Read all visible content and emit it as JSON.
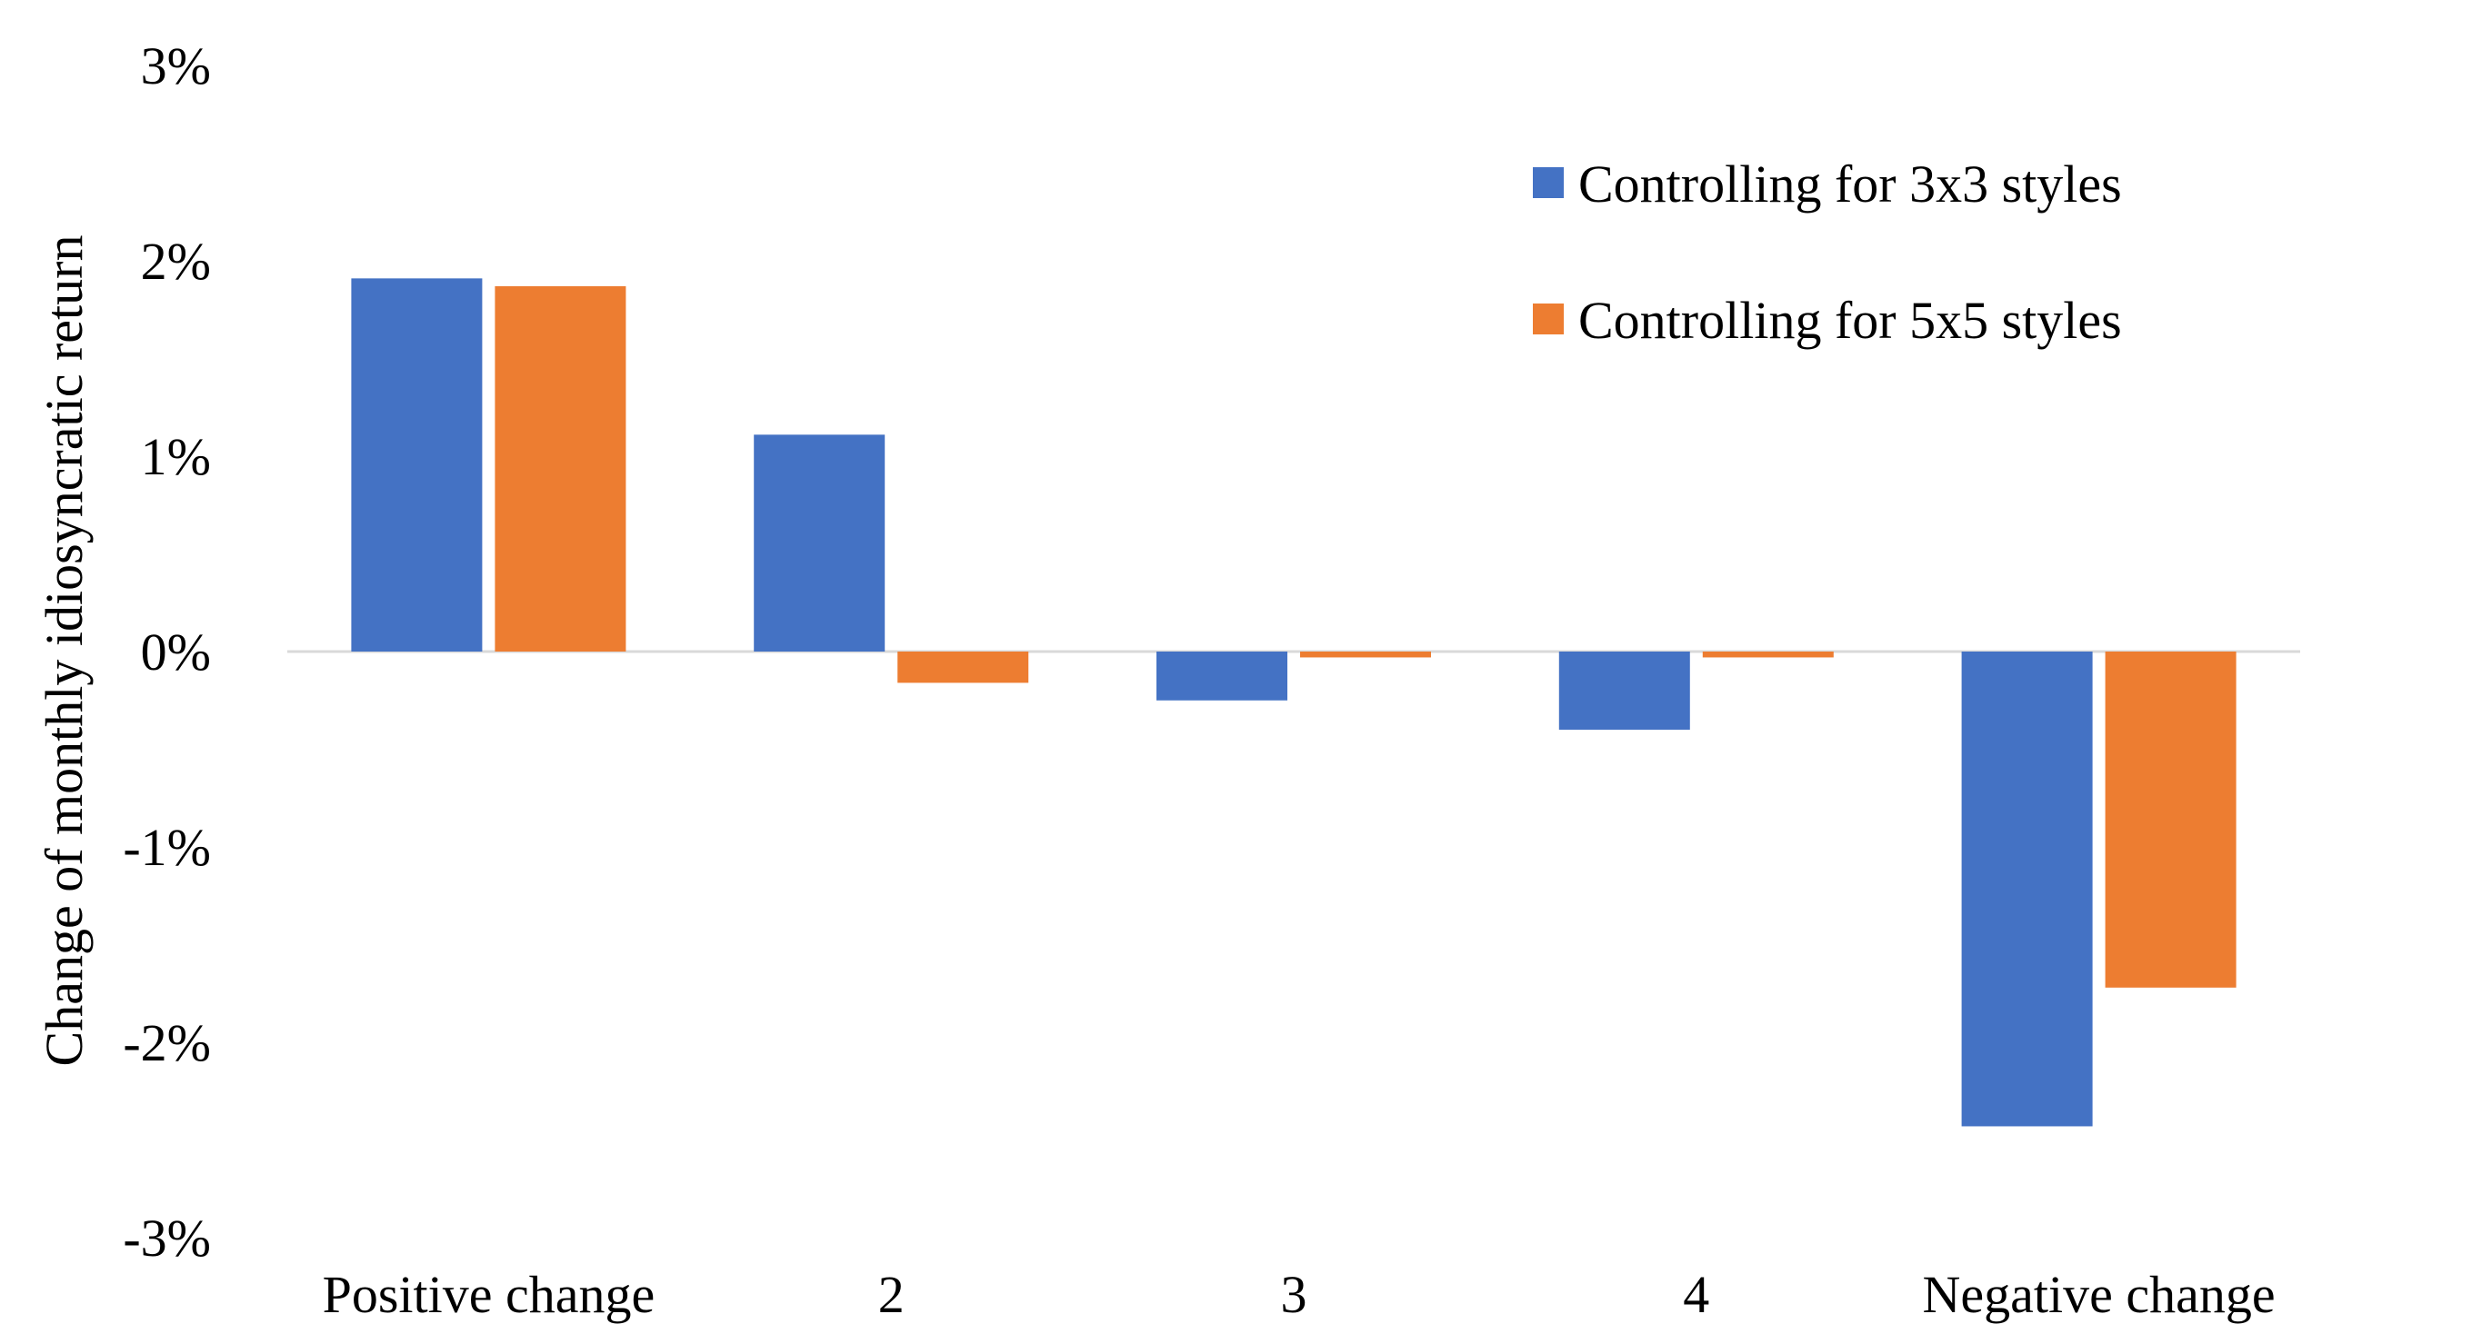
{
  "chart_data": {
    "type": "bar",
    "title": "",
    "xlabel": "",
    "ylabel": "Change of monthly idiosyncratic return",
    "categories": [
      "Positive change",
      "2",
      "3",
      "4",
      "Negative change"
    ],
    "series": [
      {
        "name": "Controlling for 3x3 styles",
        "color": "#4472C4",
        "values": [
          1.91,
          1.11,
          -0.25,
          -0.4,
          -2.43
        ]
      },
      {
        "name": "Controlling for 5x5 styles",
        "color": "#ED7D31",
        "values": [
          1.87,
          -0.16,
          -0.03,
          -0.03,
          -1.72
        ]
      }
    ],
    "ylim": [
      -3,
      3
    ],
    "yticks": [
      3,
      2,
      1,
      0,
      -1,
      -2,
      -3
    ],
    "ytick_labels": [
      "3%",
      "2%",
      "1%",
      "0%",
      "-1%",
      "-2%",
      "-3%"
    ],
    "value_unit": "%",
    "grid": false,
    "legend_position": "top-right",
    "zero_line_color": "#D9D9D9"
  }
}
